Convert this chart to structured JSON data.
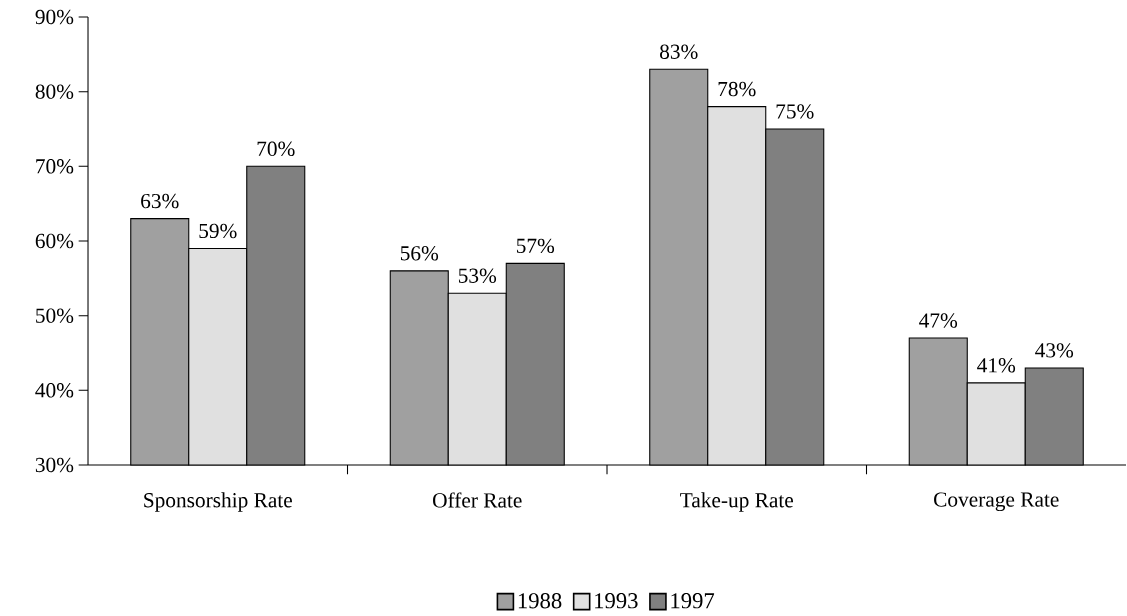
{
  "chart_data": {
    "type": "bar",
    "categories": [
      "Sponsorship Rate",
      "Offer Rate",
      "Take-up Rate",
      "Coverage Rate"
    ],
    "series": [
      {
        "name": "1988",
        "color": "#a0a0a0",
        "values": [
          63,
          56,
          83,
          47
        ],
        "value_labels": [
          "63%",
          "56%",
          "83%",
          "47%"
        ]
      },
      {
        "name": "1993",
        "color": "#e0e0e0",
        "values": [
          59,
          53,
          78,
          41
        ],
        "value_labels": [
          "59%",
          "53%",
          "78%",
          "41%"
        ]
      },
      {
        "name": "1997",
        "color": "#808080",
        "values": [
          70,
          57,
          75,
          43
        ],
        "value_labels": [
          "70%",
          "57%",
          "75%",
          "43%"
        ]
      }
    ],
    "ylim": [
      30,
      90
    ],
    "yticks": [
      {
        "value": 30,
        "label": "30%"
      },
      {
        "value": 40,
        "label": "40%"
      },
      {
        "value": 50,
        "label": "50%"
      },
      {
        "value": 60,
        "label": "60%"
      },
      {
        "value": 70,
        "label": "70%"
      },
      {
        "value": 80,
        "label": "80%"
      },
      {
        "value": 90,
        "label": "90%"
      }
    ],
    "grid": false,
    "legend": "bottom"
  }
}
